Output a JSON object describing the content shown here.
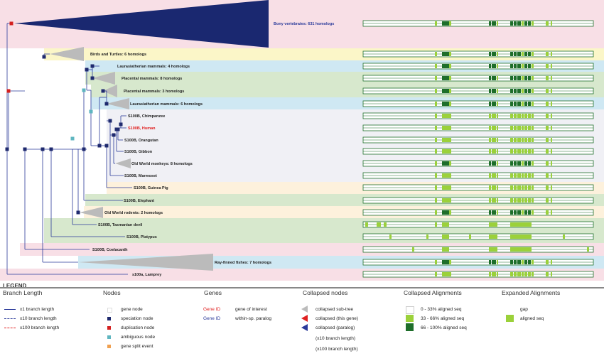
{
  "rows": [
    {
      "label": "Bony vertebrates: 631 homologs",
      "bg": "#f8dfe6",
      "labelColor": "#2a3a9a"
    },
    {
      "label": "Birds and Turtles: 6 homologs",
      "bg": "#fbf6c8",
      "labelColor": "#222222"
    },
    {
      "label": "Laurasiatherian mammals: 4 homologs",
      "bg": "#cfe8f3",
      "labelColor": "#222222"
    },
    {
      "label": "Placental mammals: 8 homologs",
      "bg": "#d7e8cd",
      "labelColor": "#222222"
    },
    {
      "label": "Placental mammals: 3 homologs",
      "bg": "#d7e8cd",
      "labelColor": "#222222"
    },
    {
      "label": "Laurasiatherian mammals: 6 homologs",
      "bg": "#cfe8f3",
      "labelColor": "#222222"
    },
    {
      "label": "S100B, Chimpanzee",
      "bg": "#f0f0f5",
      "labelColor": "#222222"
    },
    {
      "label": "S100B, Human",
      "bg": "#f0f0f5",
      "labelColor": "#e02020"
    },
    {
      "label": "S100B, Orangutan",
      "bg": "#f0f0f5",
      "labelColor": "#222222"
    },
    {
      "label": "S100B, Gibbon",
      "bg": "#f0f0f5",
      "labelColor": "#222222"
    },
    {
      "label": "Old World monkeys: 8 homologs",
      "bg": "#f0f0f5",
      "labelColor": "#222222"
    },
    {
      "label": "S100B, Marmoset",
      "bg": "#f0f0f5",
      "labelColor": "#222222"
    },
    {
      "label": "S100B, Guinea Pig",
      "bg": "#fdf1dc",
      "labelColor": "#222222"
    },
    {
      "label": "S100B, Elephant",
      "bg": "#d7e8cd",
      "labelColor": "#222222"
    },
    {
      "label": "Old World rodents: 2 homologs",
      "bg": "#fdf1dc",
      "labelColor": "#222222"
    },
    {
      "label": "S100B, Tasmanian devil",
      "bg": "#d7e8cd",
      "labelColor": "#222222"
    },
    {
      "label": "S100B, Platypus",
      "bg": "#d7e8cd",
      "labelColor": "#222222"
    },
    {
      "label": "S100B, Coelacanth",
      "bg": "#f8dfe6",
      "labelColor": "#222222"
    },
    {
      "label": "Ray-finned fishes: 7 homologs",
      "bg": "#cfe8f3",
      "labelColor": "#222222"
    },
    {
      "label": "s100a, Lamprey",
      "bg": "#f8dfe6",
      "labelColor": "#222222"
    }
  ],
  "legend": {
    "title": "LEGEND",
    "branch": {
      "heading": "Branch Length",
      "items": [
        {
          "text": "x1 branch length",
          "color": "#2a3a9a"
        },
        {
          "text": "x10 branch length",
          "color": "#2a3a9a"
        },
        {
          "text": "x100 branch length",
          "color": "#e02020"
        }
      ]
    },
    "nodes": {
      "heading": "Nodes",
      "items": [
        {
          "text": "gene node",
          "color": "#ffffff"
        },
        {
          "text": "speciation node",
          "color": "#1f2a6e"
        },
        {
          "text": "duplication node",
          "color": "#d42020"
        },
        {
          "text": "ambiguous node",
          "color": "#5fb6c0"
        },
        {
          "text": "gene split event",
          "color": "#f0a050"
        }
      ]
    },
    "genes": {
      "heading": "Genes",
      "items": [
        {
          "id": "Gene ID",
          "text": "gene of interest",
          "color": "#e02020"
        },
        {
          "id": "Gene ID",
          "text": "within-sp. paralog",
          "color": "#2a3a9a"
        }
      ]
    },
    "collapsed_nodes": {
      "heading": "Collapsed nodes",
      "items": [
        {
          "text": "collapsed sub-tree",
          "color": "#bbbbbb"
        },
        {
          "text": "collapsed (this gene)",
          "color": "#e02020"
        },
        {
          "text": "collapsed (paralog)",
          "color": "#2a3a9a"
        },
        {
          "text": "(x10 branch length)",
          "color": ""
        },
        {
          "text": "(x100 branch length)",
          "color": ""
        }
      ]
    },
    "collapsed_alignments": {
      "heading": "Collapsed Alignments",
      "items": [
        {
          "text": "0 - 33% aligned seq",
          "color": "#ffffff"
        },
        {
          "text": "33 - 66% aligned seq",
          "color": "#9bd13a"
        },
        {
          "text": "66 - 100% aligned seq",
          "color": "#1e6e2a"
        }
      ]
    },
    "expanded_alignments": {
      "heading": "Expanded Alignments",
      "items": [
        {
          "text": "gap",
          "color": "#ffffff"
        },
        {
          "text": "aligned seq",
          "color": "#9bd13a"
        }
      ]
    }
  },
  "colors": {
    "branch": "#2a3a9a",
    "speciation": "#1f2a6e",
    "duplication": "#d42020",
    "ambiguous": "#5fb6c0",
    "collapsed": "#bbbbbb",
    "bony_triangle": "#1a2870",
    "aligned_light": "#9bd13a",
    "aligned_dark": "#1e6e2a",
    "alignment_border": "#1e6e2a"
  }
}
